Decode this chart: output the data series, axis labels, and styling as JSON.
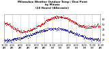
{
  "title_line1": "Milwaukee Weather Outdoor Temp / Dew Point",
  "title_line2": "by Minute",
  "title_line3": "(24 Hours) (Alternate)",
  "bg_color": "#ffffff",
  "plot_bg_color": "#ffffff",
  "grid_color": "#aaaaaa",
  "red_color": "#dd0000",
  "blue_color": "#0000cc",
  "title_color": "#000000",
  "tick_color": "#000000",
  "ylim": [
    15,
    70
  ],
  "xlim": [
    0,
    1440
  ],
  "ytick_positions": [
    20,
    30,
    40,
    50,
    60
  ],
  "ytick_labels": [
    "20",
    "30",
    "40",
    "50",
    "60"
  ],
  "xtick_positions": [
    0,
    120,
    240,
    360,
    480,
    600,
    720,
    840,
    960,
    1080,
    1200,
    1320,
    1440
  ],
  "xtick_labels": [
    "12:00\nAM",
    "2:00\nAM",
    "4:00\nAM",
    "6:00\nAM",
    "8:00\nAM",
    "10:00\nAM",
    "12:00\nPM",
    "2:00\nPM",
    "4:00\nPM",
    "6:00\nPM",
    "8:00\nPM",
    "10:00\nPM",
    "12:00\nAM"
  ],
  "temp_start": 52,
  "temp_min": 28,
  "temp_min_time": 0.22,
  "temp_peak": 65,
  "temp_peak_time": 0.57,
  "temp_end": 45,
  "dew_start": 18,
  "dew_peak": 42,
  "dew_peak_time": 0.52,
  "dew_end": 30
}
